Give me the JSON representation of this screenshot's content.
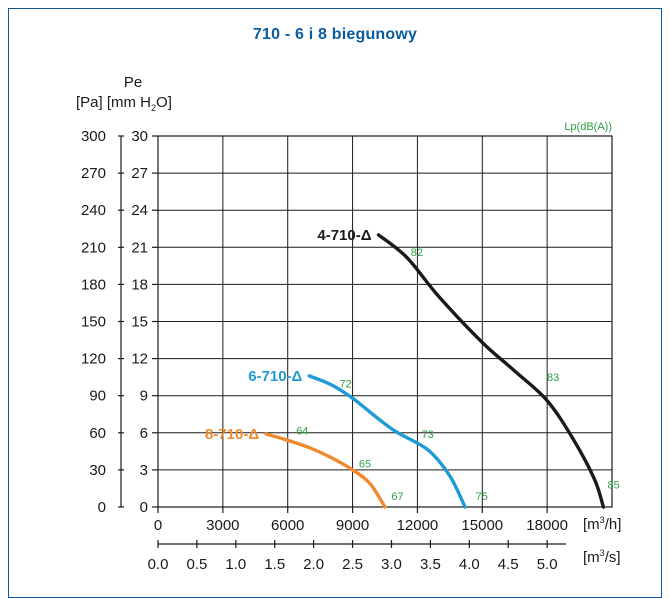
{
  "colors": {
    "frame": "#0a5c9e",
    "title": "#0a5c9e",
    "noise_label": "#2ea043",
    "series_4": "#1a1a1a",
    "series_6": "#1e9ad6",
    "series_8": "#ef8a2e"
  },
  "chart_data": {
    "type": "line",
    "title": "710 - 6 i 8 biegunowy",
    "ylabel_line1": "Pe",
    "ylabel_line2_pa": "[Pa] [mm H",
    "ylabel_line2_sub": "2",
    "ylabel_line2_end": "O]",
    "noise_label": "Lp(dB(A))",
    "x_unit_h_main": "[m",
    "x_unit_h_sup": "3",
    "x_unit_h_end": "/h]",
    "x_unit_s_main": "[m",
    "x_unit_s_sup": "3",
    "x_unit_s_end": "/s]",
    "xlim": [
      0,
      21000
    ],
    "ylim_pa": [
      0,
      300
    ],
    "ylim_mm": [
      0,
      30
    ],
    "x_ticks_h": [
      {
        "value": 0,
        "label": "0"
      },
      {
        "value": 3000,
        "label": "3000"
      },
      {
        "value": 6000,
        "label": "6000"
      },
      {
        "value": 9000,
        "label": "9000"
      },
      {
        "value": 12000,
        "label": "12000"
      },
      {
        "value": 15000,
        "label": "15000"
      },
      {
        "value": 18000,
        "label": "18000"
      }
    ],
    "x_ticks_s": [
      {
        "value": 0.0,
        "label": "0.0"
      },
      {
        "value": 0.5,
        "label": "0.5"
      },
      {
        "value": 1.0,
        "label": "1.0"
      },
      {
        "value": 1.5,
        "label": "1.5"
      },
      {
        "value": 2.0,
        "label": "2.0"
      },
      {
        "value": 2.5,
        "label": "2.5"
      },
      {
        "value": 3.0,
        "label": "3.0"
      },
      {
        "value": 3.5,
        "label": "3.5"
      },
      {
        "value": 4.0,
        "label": "4.0"
      },
      {
        "value": 4.5,
        "label": "4.5"
      },
      {
        "value": 5.0,
        "label": "5.0"
      }
    ],
    "y_ticks_pa": [
      "0",
      "30",
      "60",
      "90",
      "120",
      "150",
      "180",
      "210",
      "240",
      "270",
      "300"
    ],
    "y_ticks_mm": [
      "0",
      "3",
      "6",
      "9",
      "12",
      "15",
      "18",
      "21",
      "24",
      "27",
      "30"
    ],
    "grid": true,
    "series": [
      {
        "name": "4-710-Δ",
        "color_key": "series_4",
        "points": [
          [
            10200,
            220
          ],
          [
            11500,
            202
          ],
          [
            13000,
            170
          ],
          [
            15000,
            133
          ],
          [
            16500,
            110
          ],
          [
            18000,
            86
          ],
          [
            19200,
            55
          ],
          [
            20200,
            22
          ],
          [
            20600,
            0
          ]
        ],
        "noise": [
          {
            "x": 11600,
            "y": 206,
            "label": "82"
          },
          {
            "x": 17900,
            "y": 105,
            "label": "83"
          },
          {
            "x": 20700,
            "y": 18,
            "label": "85"
          }
        ]
      },
      {
        "name": "6-710-Δ",
        "color_key": "series_6",
        "points": [
          [
            7000,
            106
          ],
          [
            8000,
            99
          ],
          [
            9000,
            88
          ],
          [
            10000,
            74
          ],
          [
            11000,
            61
          ],
          [
            12500,
            46
          ],
          [
            13500,
            25
          ],
          [
            14200,
            0
          ]
        ],
        "noise": [
          {
            "x": 8300,
            "y": 100,
            "label": "72"
          },
          {
            "x": 12100,
            "y": 59,
            "label": "73"
          },
          {
            "x": 14600,
            "y": 9,
            "label": "75"
          }
        ]
      },
      {
        "name": "8-710-Δ",
        "color_key": "series_8",
        "points": [
          [
            5000,
            59
          ],
          [
            6000,
            54
          ],
          [
            7000,
            48
          ],
          [
            8000,
            40
          ],
          [
            9000,
            30
          ],
          [
            9800,
            19
          ],
          [
            10500,
            0
          ]
        ],
        "noise": [
          {
            "x": 6300,
            "y": 62,
            "label": "64"
          },
          {
            "x": 9200,
            "y": 35,
            "label": "65"
          },
          {
            "x": 10700,
            "y": 9,
            "label": "67"
          }
        ]
      }
    ]
  }
}
